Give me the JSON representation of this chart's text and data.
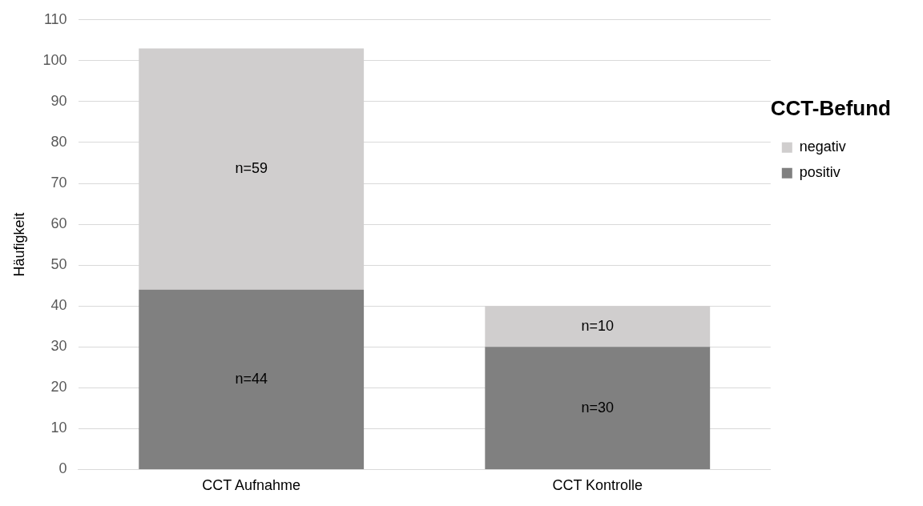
{
  "chart_data": {
    "type": "bar",
    "stacked": true,
    "ylabel": "Häufigkeit",
    "legend_title": "CCT-Befund",
    "categories": [
      "CCT Aufnahme",
      "CCT Kontrolle"
    ],
    "series": [
      {
        "name": "positiv",
        "color": "#808080",
        "values": [
          44,
          30
        ],
        "value_labels": [
          "n=44",
          "n=30"
        ]
      },
      {
        "name": "negativ",
        "color": "#d0cece",
        "values": [
          59,
          10
        ],
        "value_labels": [
          "n=59",
          "n=10"
        ]
      }
    ],
    "ylim": [
      0,
      110
    ],
    "yticks": [
      0,
      10,
      20,
      30,
      40,
      50,
      60,
      70,
      80,
      90,
      100,
      110
    ],
    "grid": "y",
    "legend": "right"
  }
}
